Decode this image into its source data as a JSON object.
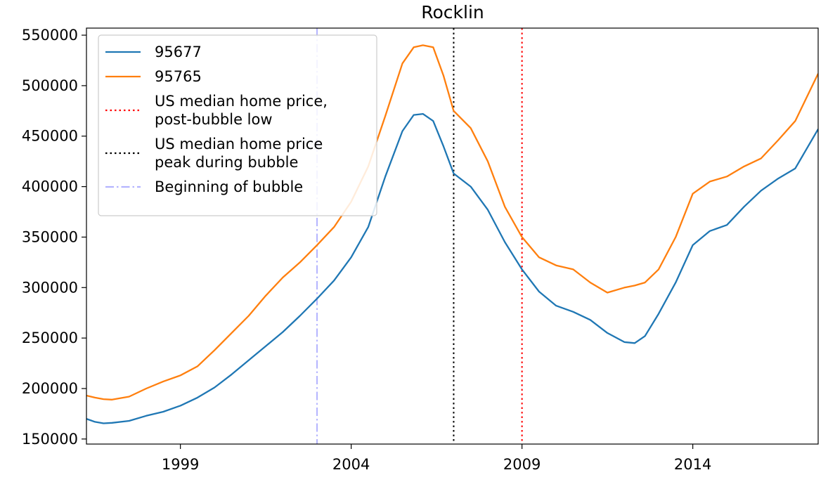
{
  "chart_data": {
    "type": "line",
    "title": "Rocklin",
    "xlabel": "",
    "ylabel": "",
    "xlim": [
      1996.25,
      2017.67
    ],
    "ylim": [
      145000,
      557000
    ],
    "xticks": [
      {
        "value": 1999,
        "label": "1999"
      },
      {
        "value": 2004,
        "label": "2004"
      },
      {
        "value": 2009,
        "label": "2009"
      },
      {
        "value": 2014,
        "label": "2014"
      }
    ],
    "yticks": [
      {
        "value": 150000,
        "label": "150000"
      },
      {
        "value": 200000,
        "label": "200000"
      },
      {
        "value": 250000,
        "label": "250000"
      },
      {
        "value": 300000,
        "label": "300000"
      },
      {
        "value": 350000,
        "label": "350000"
      },
      {
        "value": 400000,
        "label": "400000"
      },
      {
        "value": 450000,
        "label": "450000"
      },
      {
        "value": 500000,
        "label": "500000"
      },
      {
        "value": 550000,
        "label": "550000"
      }
    ],
    "grid": false,
    "legend_position": "upper left",
    "series": [
      {
        "name": "95677",
        "color": "#1f77b4",
        "x": [
          1996.25,
          1996.5,
          1996.75,
          1997.0,
          1997.5,
          1998.0,
          1998.5,
          1999.0,
          1999.5,
          2000.0,
          2000.5,
          2001.0,
          2001.5,
          2002.0,
          2002.5,
          2003.0,
          2003.5,
          2004.0,
          2004.5,
          2005.0,
          2005.5,
          2005.83,
          2006.1,
          2006.4,
          2006.7,
          2007.0,
          2007.5,
          2008.0,
          2008.5,
          2009.0,
          2009.5,
          2010.0,
          2010.5,
          2011.0,
          2011.5,
          2012.0,
          2012.3,
          2012.6,
          2013.0,
          2013.5,
          2014.0,
          2014.5,
          2015.0,
          2015.5,
          2016.0,
          2016.5,
          2017.0,
          2017.67
        ],
        "values": [
          170000,
          167000,
          165500,
          166000,
          168000,
          173000,
          177000,
          183000,
          191000,
          201000,
          214000,
          228000,
          242000,
          256000,
          272000,
          289000,
          307000,
          330000,
          360000,
          410000,
          455000,
          471000,
          472000,
          465000,
          440000,
          413000,
          400000,
          377000,
          345000,
          318000,
          296000,
          282000,
          276000,
          268000,
          255000,
          246000,
          245000,
          252000,
          274000,
          305000,
          342000,
          356000,
          362000,
          380000,
          396000,
          408000,
          418000,
          457000
        ]
      },
      {
        "name": "95765",
        "color": "#ff7f0e",
        "x": [
          1996.25,
          1996.5,
          1996.75,
          1997.0,
          1997.5,
          1998.0,
          1998.5,
          1999.0,
          1999.5,
          2000.0,
          2000.5,
          2001.0,
          2001.5,
          2002.0,
          2002.5,
          2003.0,
          2003.5,
          2004.0,
          2004.5,
          2005.0,
          2005.5,
          2005.83,
          2006.1,
          2006.4,
          2006.7,
          2007.0,
          2007.5,
          2008.0,
          2008.5,
          2009.0,
          2009.5,
          2010.0,
          2010.5,
          2011.0,
          2011.5,
          2012.0,
          2012.3,
          2012.6,
          2013.0,
          2013.5,
          2014.0,
          2014.5,
          2015.0,
          2015.5,
          2016.0,
          2016.5,
          2017.0,
          2017.67
        ],
        "values": [
          193000,
          191000,
          189500,
          189000,
          192000,
          200000,
          207000,
          213000,
          222000,
          238000,
          255000,
          272000,
          292000,
          310000,
          325000,
          342000,
          360000,
          385000,
          420000,
          470000,
          522000,
          538000,
          540000,
          538000,
          510000,
          475000,
          458000,
          425000,
          380000,
          350000,
          330000,
          322000,
          318000,
          305000,
          295000,
          300000,
          302000,
          305000,
          318000,
          350000,
          393000,
          405000,
          410000,
          420000,
          428000,
          446000,
          465000,
          512000
        ]
      }
    ],
    "vlines": [
      {
        "name": "US median home price,\npost-bubble low",
        "x": 2009.0,
        "color": "#ff0000",
        "style": "dotted"
      },
      {
        "name": "US median home price\npeak during bubble",
        "x": 2007.0,
        "color": "#000000",
        "style": "dotted"
      },
      {
        "name": "Beginning of bubble",
        "x": 2003.0,
        "color": "#b4b4ff",
        "style": "dashdot"
      }
    ],
    "legend": [
      {
        "lines": [
          "95677"
        ],
        "color": "#1f77b4",
        "style": "solid"
      },
      {
        "lines": [
          "95765"
        ],
        "color": "#ff7f0e",
        "style": "solid"
      },
      {
        "lines": [
          "US median home price,",
          "post-bubble low"
        ],
        "color": "#ff0000",
        "style": "dotted"
      },
      {
        "lines": [
          "US median home price",
          "peak during bubble"
        ],
        "color": "#000000",
        "style": "dotted"
      },
      {
        "lines": [
          "Beginning of bubble"
        ],
        "color": "#b4b4ff",
        "style": "dashdot"
      }
    ]
  }
}
